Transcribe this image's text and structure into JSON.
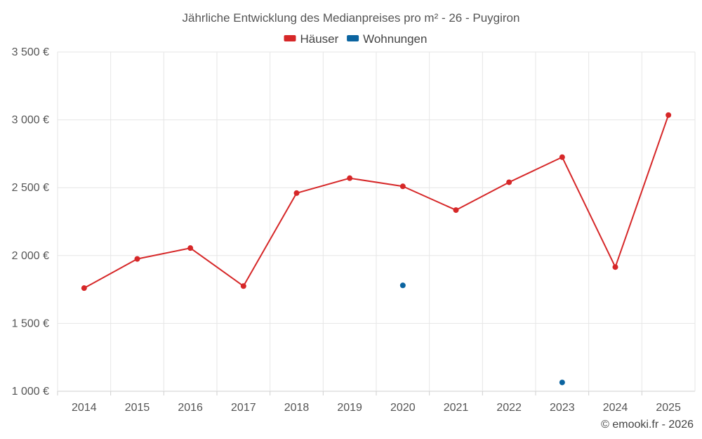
{
  "chart_data": {
    "type": "line",
    "title": "Jährliche Entwicklung des Medianpreises pro m² - 26 - Puygiron",
    "categories": [
      "2014",
      "2015",
      "2016",
      "2017",
      "2018",
      "2019",
      "2020",
      "2021",
      "2022",
      "2023",
      "2024",
      "2025"
    ],
    "series": [
      {
        "name": "Häuser",
        "color": "#d62728",
        "values": [
          1760,
          1975,
          2055,
          1775,
          2460,
          2570,
          2510,
          2335,
          2540,
          2725,
          1915,
          3035
        ]
      },
      {
        "name": "Wohnungen",
        "color": "#0b64a0",
        "values": [
          null,
          null,
          null,
          null,
          null,
          null,
          1780,
          null,
          null,
          1065,
          null,
          null
        ]
      }
    ],
    "ylim": [
      1000,
      3500
    ],
    "yticks": [
      1000,
      1500,
      2000,
      2500,
      3000,
      3500
    ],
    "ytick_labels": [
      "1 000 €",
      "1 500 €",
      "2 000 €",
      "2 500 €",
      "3 000 €",
      "3 500 €"
    ],
    "legend_position": "top-center",
    "grid": true,
    "credit": "© emooki.fr - 2026"
  }
}
